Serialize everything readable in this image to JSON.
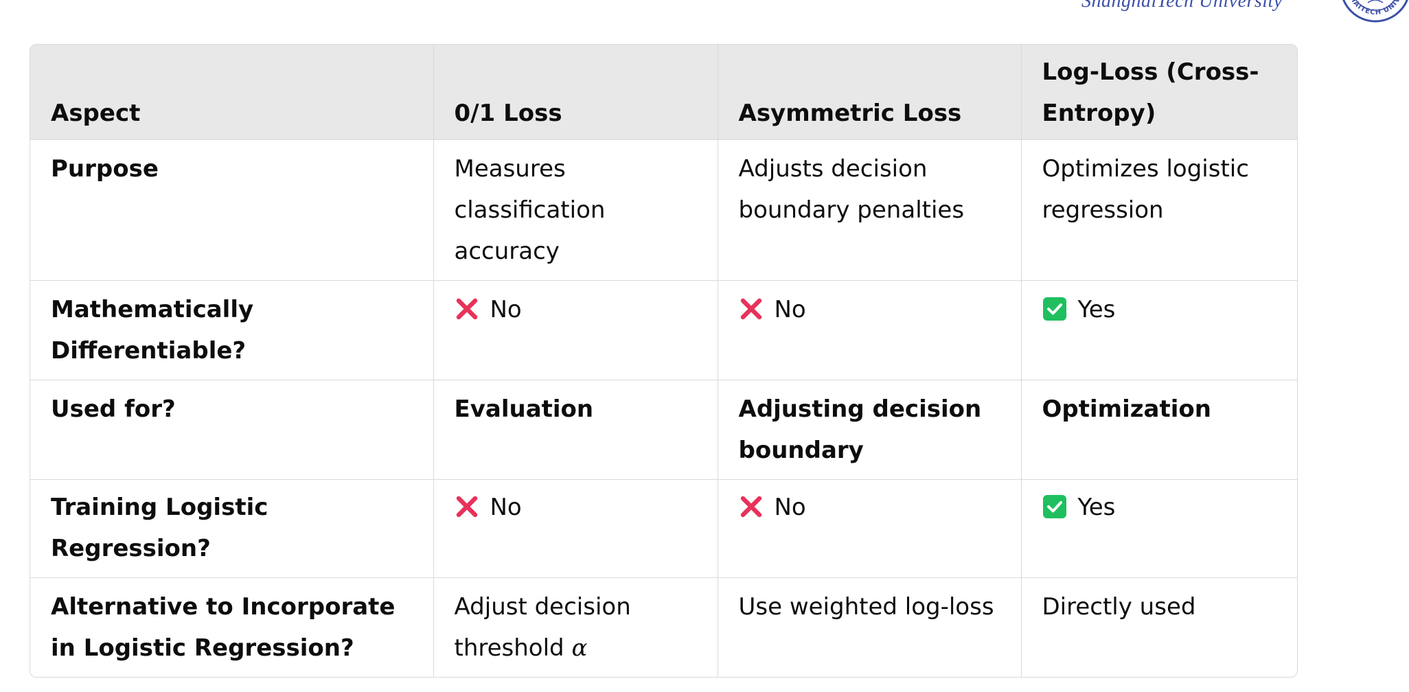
{
  "header": {
    "university_text": "ShanghaiTech University",
    "seal_text": "SHANGHAITECH UNIVERSITY"
  },
  "table": {
    "columns": [
      "Aspect",
      "0/1 Loss",
      "Asymmetric Loss",
      "Log-Loss (Cross-Entropy)"
    ],
    "rows": [
      {
        "aspect": "Purpose",
        "zero_one": "Measures classification accuracy",
        "asymmetric": "Adjusts decision boundary penalties",
        "log_loss": "Optimizes logistic regression"
      },
      {
        "aspect": "Mathematically Differentiable?",
        "zero_one": "No",
        "asymmetric": "No",
        "log_loss": "Yes",
        "zero_one_icon": "cross-mark-icon",
        "asymmetric_icon": "cross-mark-icon",
        "log_loss_icon": "check-box-icon"
      },
      {
        "aspect": "Used for?",
        "zero_one": "Evaluation",
        "asymmetric": "Adjusting decision boundary",
        "log_loss": "Optimization"
      },
      {
        "aspect": "Training Logistic Regression?",
        "zero_one": "No",
        "asymmetric": "No",
        "log_loss": "Yes",
        "zero_one_icon": "cross-mark-icon",
        "asymmetric_icon": "cross-mark-icon",
        "log_loss_icon": "check-box-icon"
      },
      {
        "aspect": "Alternative to Incorporate in Logistic Regression?",
        "zero_one": "Adjust decision threshold",
        "zero_one_symbol": "α",
        "asymmetric": "Use weighted log-loss",
        "log_loss": "Directly used"
      }
    ]
  },
  "colors": {
    "cross": "#e8325a",
    "check": "#1fbf5f",
    "header_bg": "#e8e8e8",
    "border": "#d9d9d9",
    "university_text": "#3b4fa8"
  }
}
